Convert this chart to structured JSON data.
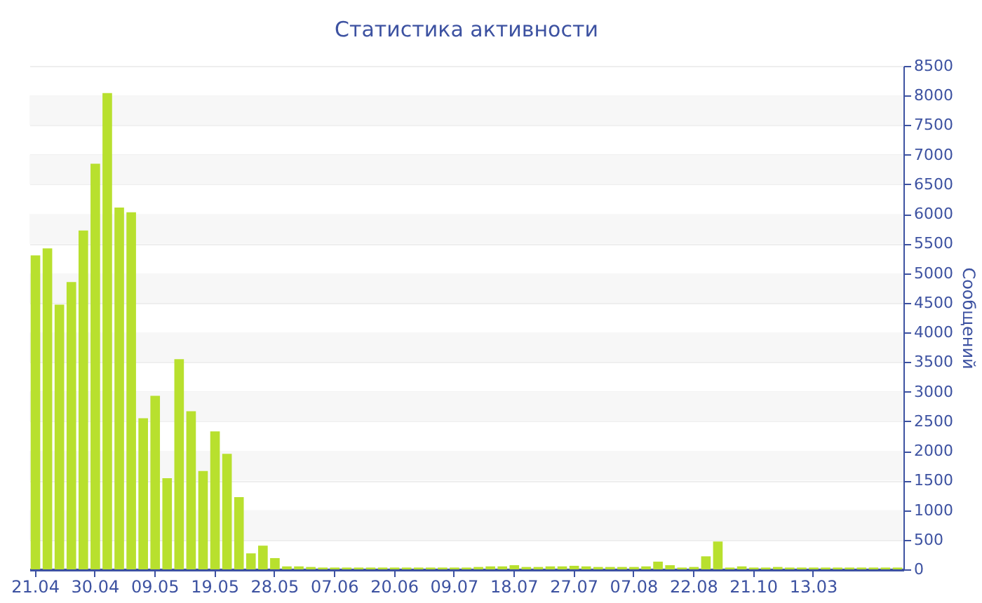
{
  "chart_data": {
    "type": "bar",
    "title": "Статистика активности",
    "ylabel": "Сообщений",
    "categories": [
      "21.04",
      null,
      null,
      null,
      null,
      "30.04",
      null,
      null,
      null,
      null,
      "09.05",
      null,
      null,
      null,
      null,
      "19.05",
      null,
      null,
      null,
      null,
      "28.05",
      null,
      null,
      null,
      null,
      "07.06",
      null,
      null,
      null,
      null,
      "20.06",
      null,
      null,
      null,
      null,
      "09.07",
      null,
      null,
      null,
      null,
      "18.07",
      null,
      null,
      null,
      null,
      "27.07",
      null,
      null,
      null,
      null,
      "07.08",
      null,
      null,
      null,
      null,
      "22.08",
      null,
      null,
      null,
      null,
      "21.10",
      null,
      null,
      null,
      null,
      "13.03",
      null,
      null,
      null,
      null,
      null,
      null,
      null
    ],
    "values": [
      5300,
      5420,
      4470,
      4850,
      5720,
      6850,
      8040,
      6110,
      6030,
      2550,
      2930,
      1540,
      3550,
      2670,
      1660,
      2330,
      1950,
      1220,
      270,
      400,
      190,
      50,
      50,
      40,
      30,
      30,
      30,
      30,
      30,
      30,
      30,
      30,
      30,
      30,
      30,
      30,
      30,
      40,
      50,
      50,
      70,
      40,
      40,
      50,
      50,
      60,
      50,
      40,
      40,
      40,
      40,
      50,
      130,
      70,
      30,
      40,
      220,
      470,
      30,
      50,
      30,
      30,
      40,
      30,
      30,
      30,
      30,
      30,
      30,
      30,
      30,
      30,
      30
    ],
    "color": "#b8e02e",
    "ylim": [
      0,
      8500
    ],
    "yticks": [
      0,
      500,
      1000,
      1500,
      2000,
      2500,
      3000,
      3500,
      4000,
      4500,
      5000,
      5500,
      6000,
      6500,
      7000,
      7500,
      8000,
      8500
    ],
    "grid": true
  }
}
